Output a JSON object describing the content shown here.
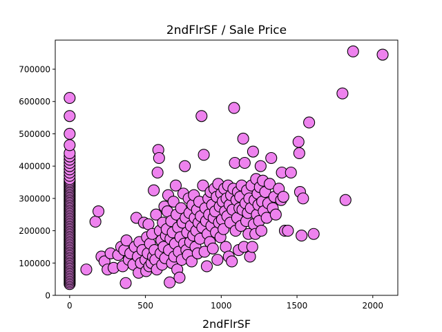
{
  "chart_data": {
    "type": "scatter",
    "title": "2ndFlrSF / Sale Price",
    "xlabel": "2ndFlrSF",
    "ylabel": "",
    "xlim": [
      -95,
      2165
    ],
    "ylim": [
      0,
      790000
    ],
    "xticks": [
      0,
      500,
      1000,
      1500,
      2000
    ],
    "yticks": [
      0,
      100000,
      200000,
      300000,
      400000,
      500000,
      600000,
      700000
    ],
    "grid": false,
    "point_color": "#ee82ee",
    "edge_color": "#000000",
    "points": [
      [
        0,
        35000
      ],
      [
        0,
        40000
      ],
      [
        0,
        45000
      ],
      [
        0,
        50000
      ],
      [
        0,
        55000
      ],
      [
        0,
        60000
      ],
      [
        0,
        65000
      ],
      [
        0,
        70000
      ],
      [
        0,
        75000
      ],
      [
        0,
        80000
      ],
      [
        0,
        85000
      ],
      [
        0,
        90000
      ],
      [
        0,
        95000
      ],
      [
        0,
        100000
      ],
      [
        0,
        105000
      ],
      [
        0,
        110000
      ],
      [
        0,
        115000
      ],
      [
        0,
        120000
      ],
      [
        0,
        125000
      ],
      [
        0,
        130000
      ],
      [
        0,
        135000
      ],
      [
        0,
        140000
      ],
      [
        0,
        145000
      ],
      [
        0,
        150000
      ],
      [
        0,
        155000
      ],
      [
        0,
        160000
      ],
      [
        0,
        165000
      ],
      [
        0,
        170000
      ],
      [
        0,
        175000
      ],
      [
        0,
        180000
      ],
      [
        0,
        185000
      ],
      [
        0,
        190000
      ],
      [
        0,
        195000
      ],
      [
        0,
        200000
      ],
      [
        0,
        205000
      ],
      [
        0,
        210000
      ],
      [
        0,
        215000
      ],
      [
        0,
        220000
      ],
      [
        0,
        225000
      ],
      [
        0,
        230000
      ],
      [
        0,
        235000
      ],
      [
        0,
        240000
      ],
      [
        0,
        245000
      ],
      [
        0,
        250000
      ],
      [
        0,
        255000
      ],
      [
        0,
        260000
      ],
      [
        0,
        265000
      ],
      [
        0,
        270000
      ],
      [
        0,
        275000
      ],
      [
        0,
        280000
      ],
      [
        0,
        285000
      ],
      [
        0,
        290000
      ],
      [
        0,
        295000
      ],
      [
        0,
        300000
      ],
      [
        0,
        305000
      ],
      [
        0,
        310000
      ],
      [
        0,
        315000
      ],
      [
        0,
        320000
      ],
      [
        0,
        325000
      ],
      [
        0,
        330000
      ],
      [
        0,
        335000
      ],
      [
        0,
        340000
      ],
      [
        0,
        345000
      ],
      [
        0,
        350000
      ],
      [
        0,
        355000
      ],
      [
        0,
        360000
      ],
      [
        0,
        370000
      ],
      [
        0,
        380000
      ],
      [
        0,
        390000
      ],
      [
        0,
        400000
      ],
      [
        0,
        410000
      ],
      [
        0,
        420000
      ],
      [
        0,
        430000
      ],
      [
        0,
        440000
      ],
      [
        0,
        465000
      ],
      [
        0,
        500000
      ],
      [
        0,
        555000
      ],
      [
        0,
        611000
      ],
      [
        110,
        80000
      ],
      [
        170,
        228000
      ],
      [
        190,
        260000
      ],
      [
        210,
        120000
      ],
      [
        230,
        105000
      ],
      [
        250,
        80000
      ],
      [
        270,
        130000
      ],
      [
        290,
        85000
      ],
      [
        320,
        125000
      ],
      [
        340,
        150000
      ],
      [
        350,
        90000
      ],
      [
        360,
        140000
      ],
      [
        370,
        38000
      ],
      [
        375,
        170000
      ],
      [
        390,
        110000
      ],
      [
        400,
        130000
      ],
      [
        420,
        95000
      ],
      [
        430,
        150000
      ],
      [
        440,
        240000
      ],
      [
        450,
        120000
      ],
      [
        455,
        70000
      ],
      [
        460,
        165000
      ],
      [
        470,
        100000
      ],
      [
        480,
        140000
      ],
      [
        490,
        225000
      ],
      [
        500,
        110000
      ],
      [
        505,
        75000
      ],
      [
        510,
        180000
      ],
      [
        515,
        130000
      ],
      [
        520,
        220000
      ],
      [
        525,
        90000
      ],
      [
        530,
        160000
      ],
      [
        540,
        100000
      ],
      [
        545,
        190000
      ],
      [
        550,
        120000
      ],
      [
        555,
        325000
      ],
      [
        560,
        140000
      ],
      [
        565,
        110000
      ],
      [
        570,
        250000
      ],
      [
        575,
        80000
      ],
      [
        580,
        380000
      ],
      [
        585,
        450000
      ],
      [
        590,
        425000
      ],
      [
        595,
        200000
      ],
      [
        600,
        130000
      ],
      [
        605,
        170000
      ],
      [
        610,
        95000
      ],
      [
        615,
        225000
      ],
      [
        620,
        150000
      ],
      [
        625,
        275000
      ],
      [
        630,
        115000
      ],
      [
        635,
        185000
      ],
      [
        640,
        205000
      ],
      [
        645,
        260000
      ],
      [
        650,
        310000
      ],
      [
        655,
        140000
      ],
      [
        660,
        40000
      ],
      [
        665,
        175000
      ],
      [
        670,
        230000
      ],
      [
        675,
        100000
      ],
      [
        680,
        195000
      ],
      [
        685,
        290000
      ],
      [
        690,
        120000
      ],
      [
        695,
        160000
      ],
      [
        700,
        340000
      ],
      [
        705,
        250000
      ],
      [
        710,
        80000
      ],
      [
        715,
        210000
      ],
      [
        720,
        135000
      ],
      [
        725,
        55000
      ],
      [
        730,
        180000
      ],
      [
        735,
        270000
      ],
      [
        740,
        110000
      ],
      [
        745,
        225000
      ],
      [
        750,
        315000
      ],
      [
        755,
        160000
      ],
      [
        760,
        400000
      ],
      [
        765,
        240000
      ],
      [
        770,
        140000
      ],
      [
        775,
        195000
      ],
      [
        780,
        125000
      ],
      [
        785,
        300000
      ],
      [
        790,
        255000
      ],
      [
        795,
        165000
      ],
      [
        800,
        215000
      ],
      [
        805,
        105000
      ],
      [
        810,
        280000
      ],
      [
        815,
        185000
      ],
      [
        820,
        310000
      ],
      [
        825,
        240000
      ],
      [
        830,
        150000
      ],
      [
        835,
        200000
      ],
      [
        840,
        265000
      ],
      [
        845,
        130000
      ],
      [
        850,
        225000
      ],
      [
        855,
        290000
      ],
      [
        860,
        175000
      ],
      [
        865,
        245000
      ],
      [
        870,
        555000
      ],
      [
        875,
        210000
      ],
      [
        880,
        340000
      ],
      [
        885,
        435000
      ],
      [
        890,
        135000
      ],
      [
        895,
        270000
      ],
      [
        900,
        230000
      ],
      [
        905,
        90000
      ],
      [
        910,
        190000
      ],
      [
        915,
        300000
      ],
      [
        920,
        250000
      ],
      [
        925,
        165000
      ],
      [
        930,
        320000
      ],
      [
        935,
        215000
      ],
      [
        940,
        280000
      ],
      [
        945,
        145000
      ],
      [
        950,
        240000
      ],
      [
        955,
        330000
      ],
      [
        960,
        260000
      ],
      [
        965,
        195000
      ],
      [
        970,
        305000
      ],
      [
        975,
        110000
      ],
      [
        980,
        345000
      ],
      [
        985,
        225000
      ],
      [
        990,
        275000
      ],
      [
        995,
        180000
      ],
      [
        1000,
        315000
      ],
      [
        1005,
        235000
      ],
      [
        1010,
        290000
      ],
      [
        1015,
        205000
      ],
      [
        1020,
        330000
      ],
      [
        1025,
        260000
      ],
      [
        1030,
        150000
      ],
      [
        1035,
        300000
      ],
      [
        1040,
        245000
      ],
      [
        1045,
        340000
      ],
      [
        1050,
        120000
      ],
      [
        1055,
        280000
      ],
      [
        1060,
        225000
      ],
      [
        1065,
        310000
      ],
      [
        1070,
        105000
      ],
      [
        1075,
        265000
      ],
      [
        1080,
        330000
      ],
      [
        1085,
        580000
      ],
      [
        1090,
        410000
      ],
      [
        1095,
        200000
      ],
      [
        1100,
        295000
      ],
      [
        1105,
        240000
      ],
      [
        1110,
        320000
      ],
      [
        1115,
        140000
      ],
      [
        1120,
        270000
      ],
      [
        1125,
        305000
      ],
      [
        1130,
        215000
      ],
      [
        1135,
        340000
      ],
      [
        1140,
        265000
      ],
      [
        1145,
        485000
      ],
      [
        1150,
        150000
      ],
      [
        1155,
        410000
      ],
      [
        1160,
        285000
      ],
      [
        1165,
        230000
      ],
      [
        1170,
        325000
      ],
      [
        1175,
        255000
      ],
      [
        1180,
        190000
      ],
      [
        1185,
        300000
      ],
      [
        1190,
        120000
      ],
      [
        1195,
        270000
      ],
      [
        1200,
        340000
      ],
      [
        1205,
        150000
      ],
      [
        1210,
        445000
      ],
      [
        1215,
        220000
      ],
      [
        1220,
        295000
      ],
      [
        1225,
        190000
      ],
      [
        1230,
        360000
      ],
      [
        1235,
        250000
      ],
      [
        1240,
        315000
      ],
      [
        1245,
        280000
      ],
      [
        1250,
        230000
      ],
      [
        1255,
        335000
      ],
      [
        1260,
        400000
      ],
      [
        1265,
        200000
      ],
      [
        1270,
        290000
      ],
      [
        1275,
        355000
      ],
      [
        1280,
        260000
      ],
      [
        1290,
        320000
      ],
      [
        1300,
        240000
      ],
      [
        1310,
        285000
      ],
      [
        1320,
        345000
      ],
      [
        1330,
        425000
      ],
      [
        1340,
        270000
      ],
      [
        1350,
        305000
      ],
      [
        1360,
        250000
      ],
      [
        1380,
        330000
      ],
      [
        1395,
        295000
      ],
      [
        1400,
        380000
      ],
      [
        1410,
        305000
      ],
      [
        1420,
        200000
      ],
      [
        1440,
        200000
      ],
      [
        1460,
        380000
      ],
      [
        1510,
        475000
      ],
      [
        1515,
        440000
      ],
      [
        1520,
        320000
      ],
      [
        1530,
        185000
      ],
      [
        1540,
        300000
      ],
      [
        1580,
        535000
      ],
      [
        1610,
        190000
      ],
      [
        1800,
        625000
      ],
      [
        1820,
        295000
      ],
      [
        1870,
        755000
      ],
      [
        2065,
        745000
      ]
    ]
  }
}
